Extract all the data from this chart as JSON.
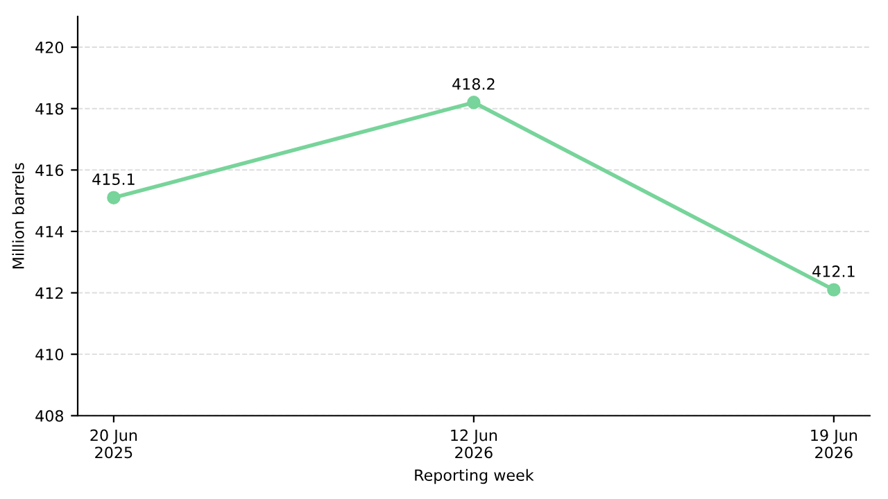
{
  "chart_data": {
    "type": "line",
    "xlabel": "Reporting week",
    "ylabel": "Million barrels",
    "categories": [
      "20 Jun\n2025",
      "12 Jun\n2026",
      "19 Jun\n2026"
    ],
    "series": [
      {
        "color": "#77d49a",
        "values": [
          415.1,
          418.2,
          412.1
        ]
      }
    ],
    "ylim": [
      408,
      421
    ],
    "yticks": [
      408,
      410,
      412,
      414,
      416,
      418,
      420
    ],
    "grid": "y",
    "marker": "circle",
    "line_style": "solid",
    "data_labels": true
  }
}
